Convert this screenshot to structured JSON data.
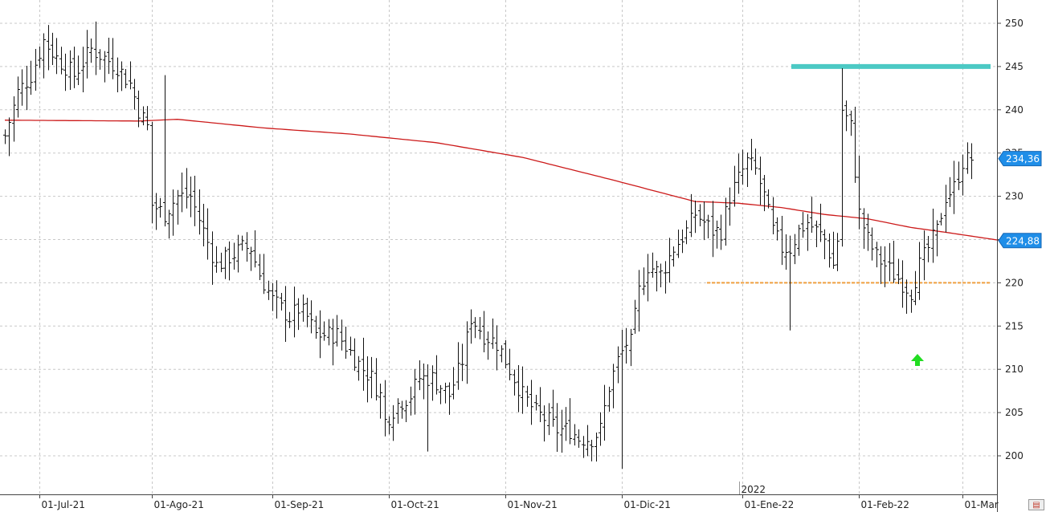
{
  "chart_data": {
    "type": "ohlc",
    "year_marker": "2022",
    "y_ticks": [
      200,
      205,
      210,
      215,
      220,
      225,
      230,
      235,
      240,
      245,
      250
    ],
    "ylim": [
      196,
      252
    ],
    "x_ticks": [
      "01-Jul-21",
      "01-Ago-21",
      "01-Sep-21",
      "01-Oct-21",
      "01-Nov-21",
      "01-Dic-21",
      "01-Ene-22",
      "01-Feb-22",
      "01-Mar"
    ],
    "price_tags": [
      {
        "label": "234,36",
        "value": 234.36
      },
      {
        "label": "224,88",
        "value": 224.88
      }
    ],
    "resistance_level": 245,
    "support_level": 220,
    "moving_average": {
      "anchors": [
        [
          0,
          238.8
        ],
        [
          31,
          238.7
        ],
        [
          40,
          238.9
        ],
        [
          60,
          237.9
        ],
        [
          80,
          237.2
        ],
        [
          100,
          236.2
        ],
        [
          120,
          234.5
        ],
        [
          140,
          232.0
        ],
        [
          160,
          229.4
        ],
        [
          170,
          229.2
        ],
        [
          180,
          228.7
        ],
        [
          190,
          227.9
        ],
        [
          200,
          227.4
        ],
        [
          210,
          226.4
        ],
        [
          220,
          225.7
        ],
        [
          228,
          225.1
        ],
        [
          231,
          224.88
        ]
      ]
    },
    "ohlc_anchors": [
      [
        0,
        237
      ],
      [
        3,
        242
      ],
      [
        6,
        244
      ],
      [
        9,
        248
      ],
      [
        12,
        246
      ],
      [
        16,
        244
      ],
      [
        20,
        247
      ],
      [
        23,
        246
      ],
      [
        26,
        245
      ],
      [
        29,
        243
      ],
      [
        31,
        240
      ],
      [
        33,
        238
      ],
      [
        34,
        229
      ],
      [
        37,
        228
      ],
      [
        40,
        230
      ],
      [
        43,
        230
      ],
      [
        46,
        226
      ],
      [
        49,
        222
      ],
      [
        52,
        223
      ],
      [
        55,
        224
      ],
      [
        57,
        224
      ],
      [
        59,
        221
      ],
      [
        62,
        218
      ],
      [
        64,
        217
      ],
      [
        66,
        216
      ],
      [
        68,
        217
      ],
      [
        70,
        216
      ],
      [
        72,
        214
      ],
      [
        74,
        214
      ],
      [
        77,
        214
      ],
      [
        80,
        212
      ],
      [
        83,
        210
      ],
      [
        85,
        209
      ],
      [
        87,
        207
      ],
      [
        88,
        204
      ],
      [
        91,
        206
      ],
      [
        94,
        207
      ],
      [
        96,
        209
      ],
      [
        99,
        209
      ],
      [
        101,
        208
      ],
      [
        103,
        207
      ],
      [
        106,
        211
      ],
      [
        108,
        216
      ],
      [
        111,
        214
      ],
      [
        114,
        213
      ],
      [
        116,
        211
      ],
      [
        118,
        209
      ],
      [
        120,
        207
      ],
      [
        123,
        205
      ],
      [
        126,
        204
      ],
      [
        128,
        203
      ],
      [
        131,
        203
      ],
      [
        133,
        202
      ],
      [
        136,
        202
      ],
      [
        138,
        203
      ],
      [
        140,
        208
      ],
      [
        142,
        211
      ],
      [
        144,
        213
      ],
      [
        145,
        213
      ],
      [
        147,
        219
      ],
      [
        149,
        222
      ],
      [
        152,
        221
      ],
      [
        155,
        224
      ],
      [
        158,
        226
      ],
      [
        160,
        228
      ],
      [
        162,
        227
      ],
      [
        164,
        226
      ],
      [
        166,
        226
      ],
      [
        168,
        230
      ],
      [
        170,
        232
      ],
      [
        172,
        234
      ],
      [
        174,
        233
      ],
      [
        176,
        230
      ],
      [
        178,
        226
      ],
      [
        180,
        224
      ],
      [
        182,
        224
      ],
      [
        184,
        226
      ],
      [
        186,
        227
      ],
      [
        188,
        226
      ],
      [
        190,
        225
      ],
      [
        192,
        222
      ],
      [
        193,
        225
      ],
      [
        194,
        240
      ],
      [
        196,
        238
      ],
      [
        198,
        228
      ],
      [
        200,
        225
      ],
      [
        202,
        223
      ],
      [
        204,
        222
      ],
      [
        206,
        221
      ],
      [
        208,
        220
      ],
      [
        210,
        219
      ],
      [
        212,
        222
      ],
      [
        214,
        224
      ],
      [
        216,
        226
      ],
      [
        218,
        230
      ],
      [
        220,
        231
      ],
      [
        222,
        234
      ],
      [
        224,
        234.36
      ]
    ],
    "ohlc_highs": {
      "194": 244.8,
      "10": 249.8,
      "21": 250.2,
      "37": 244
    },
    "ohlc_lows": {
      "182": 214.5,
      "143": 198.5,
      "98": 200.5
    }
  },
  "icons": {
    "corner": "chart-settings-icon"
  }
}
